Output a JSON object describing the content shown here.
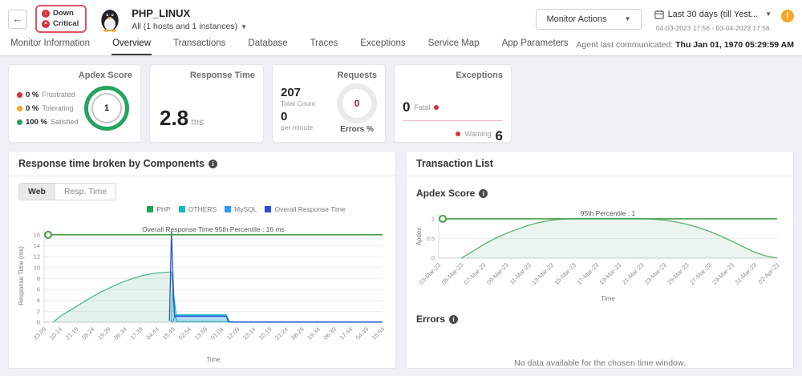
{
  "header": {
    "back_glyph": "←",
    "status": {
      "down_label": "Down",
      "critical_label": "Critical"
    },
    "monitor_title": "PHP_LINUX",
    "instance_selector": "All (1 hosts and 1 instances)",
    "monitor_actions_label": "Monitor Actions",
    "time_range_label": "Last 30 days (till Yest...",
    "time_range_detail": "04-03-2023 17:56 - 03-04-2023 17:56",
    "agent_label": "Agent last communicated:",
    "agent_value": "Thu Jan 01, 1970 05:29:59 AM",
    "alert_glyph": "!"
  },
  "active_tab": 1,
  "tabs": [
    "Monitor Information",
    "Overview",
    "Transactions",
    "Database",
    "Traces",
    "Exceptions",
    "Service Map",
    "App Parameters"
  ],
  "cards": {
    "apdex": {
      "title": "Apdex Score",
      "gauge_value": "1",
      "legend": [
        {
          "pct": "0 %",
          "label": "Frustrated",
          "color": "#e0303b"
        },
        {
          "pct": "0 %",
          "label": "Tolerating",
          "color": "#f5a623"
        },
        {
          "pct": "100 %",
          "label": "Satisfied",
          "color": "#27a35f"
        }
      ]
    },
    "response_time": {
      "title": "Response Time",
      "value": "2.8",
      "unit": "ms"
    },
    "requests": {
      "title": "Requests",
      "total": "207",
      "total_label": "Total Count",
      "per_minute": "0",
      "per_minute_label": "per minute",
      "errors_value": "0",
      "errors_label": "Errors %"
    },
    "exceptions": {
      "title": "Exceptions",
      "fatal_value": "0",
      "fatal_label": "Fatal",
      "warning_label": "Warning",
      "warning_value": "6"
    }
  },
  "left_panel": {
    "title": "Response time broken by Components",
    "toggle": [
      "Web",
      "Resp. Time"
    ]
  },
  "right_panel": {
    "title": "Transaction List",
    "apdex_title": "Apdex Score",
    "errors_title": "Errors",
    "no_data_message": "No data available for the chosen time window."
  },
  "chart_data": [
    {
      "type": "area",
      "title": "Response time broken by Components",
      "xlabel": "Time",
      "ylabel": "Response Time (ms)",
      "ylim": [
        0,
        17
      ],
      "yticks": [
        0,
        2,
        4,
        6,
        8,
        10,
        12,
        14,
        16
      ],
      "grid": true,
      "legend_position": "top",
      "annotation": {
        "text": "Overall Response Time 95th Percentile : 16 ms",
        "y": 16,
        "color": "#43a047"
      },
      "categories": [
        "23:09",
        "10:14",
        "21:19",
        "08:24",
        "19:29",
        "06:34",
        "17:39",
        "04:44",
        "15:49",
        "02:54",
        "13:59",
        "01:04",
        "12:09",
        "23:14",
        "10:19",
        "21:24",
        "08:29",
        "19:34",
        "06:39",
        "17:44",
        "04:49",
        "15:54"
      ],
      "legend": [
        {
          "name": "PHP",
          "color": "#21a458"
        },
        {
          "name": "OTHERS",
          "color": "#17b8be"
        },
        {
          "name": "MySQL",
          "color": "#2e9bf0"
        },
        {
          "name": "Overall Response Time",
          "color": "#2b4fd6"
        }
      ],
      "series": [
        {
          "name": "PHP",
          "color": "#52b788",
          "fill": true,
          "fill_opacity": 0.16,
          "points": [
            [
              0.55,
              0
            ],
            [
              1,
              1.1
            ],
            [
              1.5,
              2.0
            ],
            [
              2,
              2.9
            ],
            [
              2.5,
              3.8
            ],
            [
              3,
              4.7
            ],
            [
              3.5,
              5.5
            ],
            [
              4,
              6.2
            ],
            [
              4.5,
              6.9
            ],
            [
              5,
              7.5
            ],
            [
              5.5,
              8.0
            ],
            [
              6,
              8.45
            ],
            [
              6.5,
              8.8
            ],
            [
              7,
              9.0
            ],
            [
              7.5,
              9.15
            ],
            [
              7.9,
              9.2
            ],
            [
              8.1,
              1.4
            ],
            [
              8.25,
              0.15
            ],
            [
              11.3,
              0.15
            ],
            [
              11.5,
              0.05
            ],
            [
              21,
              0.05
            ]
          ]
        },
        {
          "name": "MySQL",
          "color": "#2e9bf0",
          "fill": true,
          "fill_opacity": 0.3,
          "points": [
            [
              7.95,
              0
            ],
            [
              8.15,
              1.28
            ],
            [
              11.3,
              1.28
            ],
            [
              11.45,
              0.02
            ],
            [
              21,
              0.02
            ]
          ]
        },
        {
          "name": "OTHERS",
          "color": "#17b8be",
          "fill": true,
          "fill_opacity": 0.08,
          "points": [
            [
              7.88,
              0
            ],
            [
              7.98,
              6.0
            ],
            [
              8.2,
              1.35
            ],
            [
              11.3,
              1.35
            ],
            [
              11.5,
              0.1
            ],
            [
              21,
              0.08
            ]
          ]
        },
        {
          "name": "Overall Response Time",
          "color": "#2b4fd6",
          "fill": false,
          "points": [
            [
              7.78,
              0.3
            ],
            [
              7.9,
              16.6
            ],
            [
              8.08,
              1.1
            ],
            [
              11.3,
              1.1
            ],
            [
              11.45,
              0.05
            ],
            [
              21,
              0.05
            ]
          ]
        }
      ]
    },
    {
      "type": "area",
      "title": "Apdex Score",
      "xlabel": "Time",
      "ylabel": "Apdex",
      "ylim": [
        0,
        1.1
      ],
      "yticks": [
        0,
        0.5,
        1
      ],
      "grid": true,
      "annotation": {
        "text": "95th Percentile : 1",
        "y": 1,
        "color": "#43a047"
      },
      "categories": [
        "03-Mar-23",
        "05-Mar-23",
        "07-Mar-23",
        "09-Mar-23",
        "11-Mar-23",
        "13-Mar-23",
        "15-Mar-23",
        "17-Mar-23",
        "19-Mar-23",
        "21-Mar-23",
        "23-Mar-23",
        "25-Mar-23",
        "27-Mar-23",
        "29-Mar-23",
        "31-Mar-23",
        "02-Apr-23"
      ],
      "series": [
        {
          "name": "Apdex",
          "color": "#5cb071",
          "fill": true,
          "fill_opacity": 0.12,
          "points": [
            [
              1,
              0
            ],
            [
              1.5,
              0.17
            ],
            [
              2,
              0.35
            ],
            [
              2.5,
              0.5
            ],
            [
              3,
              0.63
            ],
            [
              3.5,
              0.74
            ],
            [
              4,
              0.84
            ],
            [
              4.5,
              0.91
            ],
            [
              5,
              0.965
            ],
            [
              5.5,
              0.995
            ],
            [
              6,
              1
            ],
            [
              9,
              1
            ],
            [
              9.5,
              0.995
            ],
            [
              10,
              0.965
            ],
            [
              10.5,
              0.92
            ],
            [
              11,
              0.86
            ],
            [
              11.5,
              0.78
            ],
            [
              12,
              0.68
            ],
            [
              12.5,
              0.56
            ],
            [
              13,
              0.43
            ],
            [
              13.5,
              0.29
            ],
            [
              14,
              0.15
            ],
            [
              14.5,
              0.06
            ],
            [
              15,
              0
            ]
          ]
        }
      ]
    }
  ]
}
